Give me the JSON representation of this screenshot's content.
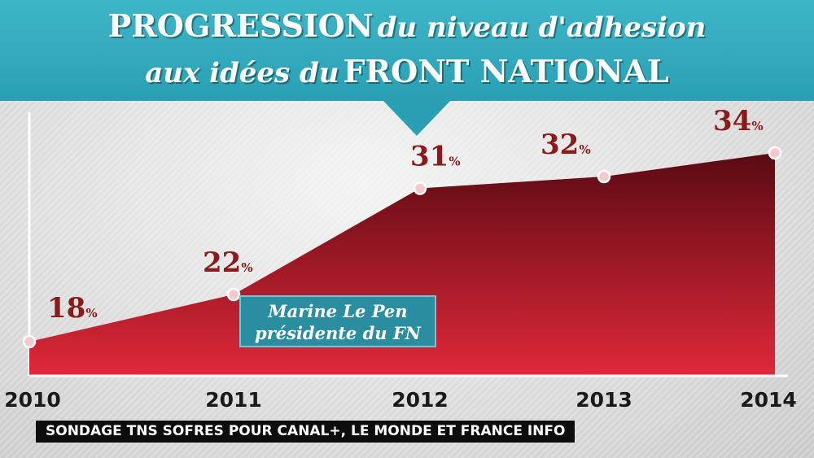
{
  "header": {
    "title_line1_strong": "PROGRESSION",
    "title_line1_italic": "du niveau d'adhesion",
    "title_line2_italic": "aux idées du",
    "title_line2_strong": "FRONT NATIONAL",
    "bg_color": "#2a9fb3"
  },
  "annotation": {
    "line1": "Marine Le Pen",
    "line2": "présidente du FN",
    "bg_color": "#2b8ea0"
  },
  "source": {
    "text": "SONDAGE TNS SOFRES POUR CANAL+, LE MONDE ET FRANCE INFO"
  },
  "chart_data": {
    "type": "area",
    "title": "PROGRESSION du niveau d'adhesion aux idées du FRONT NATIONAL",
    "x": [
      "2010",
      "2011",
      "2012",
      "2013",
      "2014"
    ],
    "values": [
      18,
      22,
      31,
      32,
      34
    ],
    "value_suffix": "%",
    "fill_top_color": "#5a0a12",
    "fill_bottom_color": "#e0283a",
    "label_color": "#8b1a1a",
    "grid": false,
    "legend": "none"
  }
}
